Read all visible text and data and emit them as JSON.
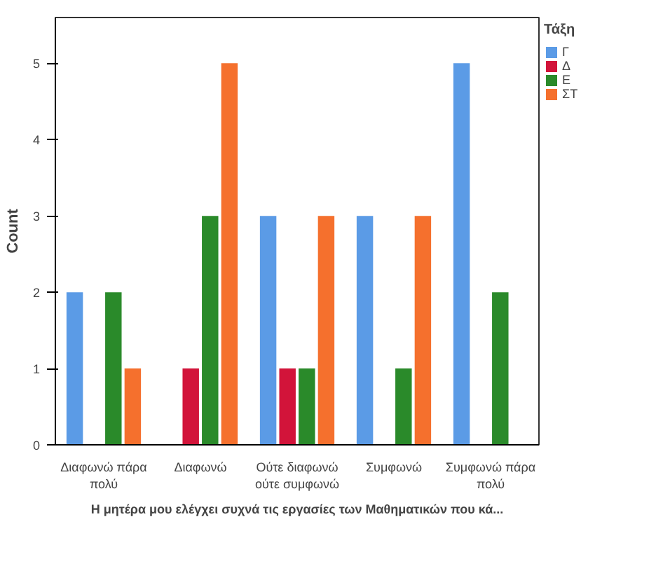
{
  "chart_data": {
    "type": "bar",
    "xlabel": "Η μητέρα μου ελέγχει συχνά τις εργασίες των Μαθηματικών που κά...",
    "ylabel": "Count",
    "legend_title": "Τάξη",
    "categories": [
      "Διαφωνώ πάρα πολύ",
      "Διαφωνώ",
      "Ούτε διαφωνώ ούτε συμφωνώ",
      "Συμφωνώ",
      "Συμφωνώ πάρα πολύ"
    ],
    "series": [
      {
        "name": "Γ",
        "color": "#5b9be6",
        "values": [
          2,
          0,
          3,
          3,
          5
        ]
      },
      {
        "name": "Δ",
        "color": "#d2143a",
        "values": [
          0,
          1,
          1,
          0,
          0
        ]
      },
      {
        "name": "Ε",
        "color": "#2a8a2a",
        "values": [
          2,
          3,
          1,
          1,
          2
        ]
      },
      {
        "name": "ΣΤ",
        "color": "#f5702d",
        "values": [
          1,
          5,
          3,
          3,
          0
        ]
      }
    ],
    "ylim": [
      0,
      5.6
    ],
    "yticks": [
      0,
      1,
      2,
      3,
      4,
      5
    ],
    "grid": false,
    "legend": "top right"
  }
}
